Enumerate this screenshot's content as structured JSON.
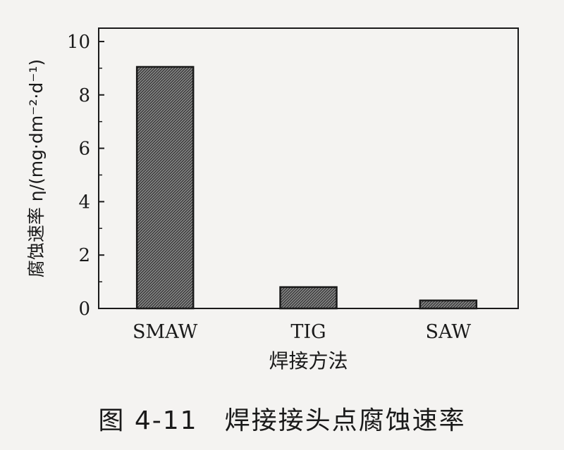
{
  "chart_data": {
    "type": "bar",
    "categories": [
      "SMAW",
      "TIG",
      "SAW"
    ],
    "values": [
      9.05,
      0.8,
      0.3
    ],
    "xlabel": "焊接方法",
    "ylabel": "腐蚀速率 η/(mg·dm⁻²·d⁻¹)",
    "ylim": [
      0,
      10.5
    ],
    "yticks": [
      0,
      2,
      4,
      6,
      8,
      10
    ],
    "grid": false,
    "bar_fill": "#6b6b6b"
  },
  "caption": {
    "figure_number": "图 4-11",
    "title": "焊接接头点腐蚀速率"
  }
}
